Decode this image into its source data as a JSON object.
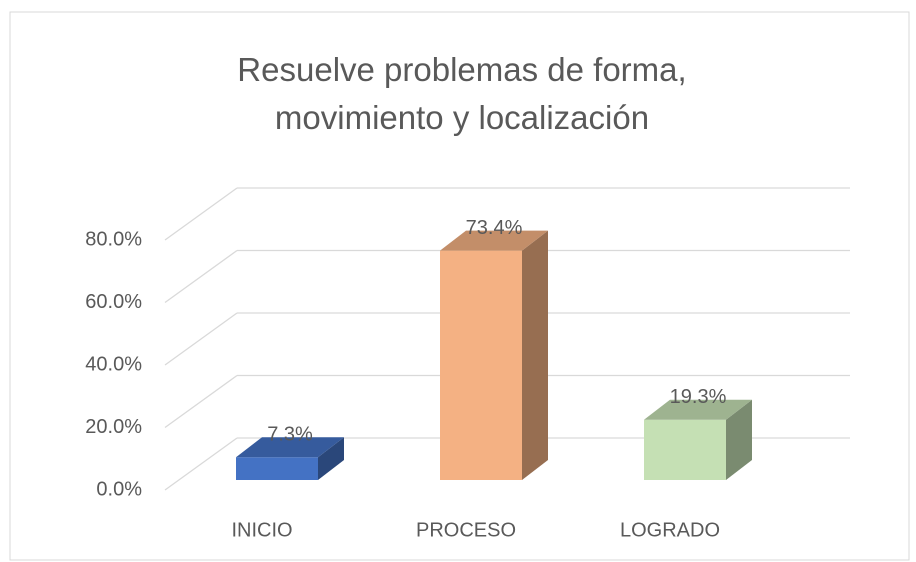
{
  "chart_data": {
    "type": "bar3d",
    "title": "Resuelve problemas de forma, movimiento y localización",
    "categories": [
      "INICIO",
      "PROCESO",
      "LOGRADO"
    ],
    "values": [
      7.3,
      73.4,
      19.3
    ],
    "value_labels": [
      "7.3%",
      "73.4%",
      "19.3%"
    ],
    "colors": [
      "#4472c4",
      "#f4b183",
      "#c5e0b4"
    ],
    "ylim": [
      0,
      80
    ],
    "yticks": [
      {
        "value": 0,
        "label": "0.0%"
      },
      {
        "value": 20,
        "label": "20.0%"
      },
      {
        "value": 40,
        "label": "40.0%"
      },
      {
        "value": 60,
        "label": "60.0%"
      },
      {
        "value": 80,
        "label": "80.0%"
      }
    ],
    "grid": true
  }
}
